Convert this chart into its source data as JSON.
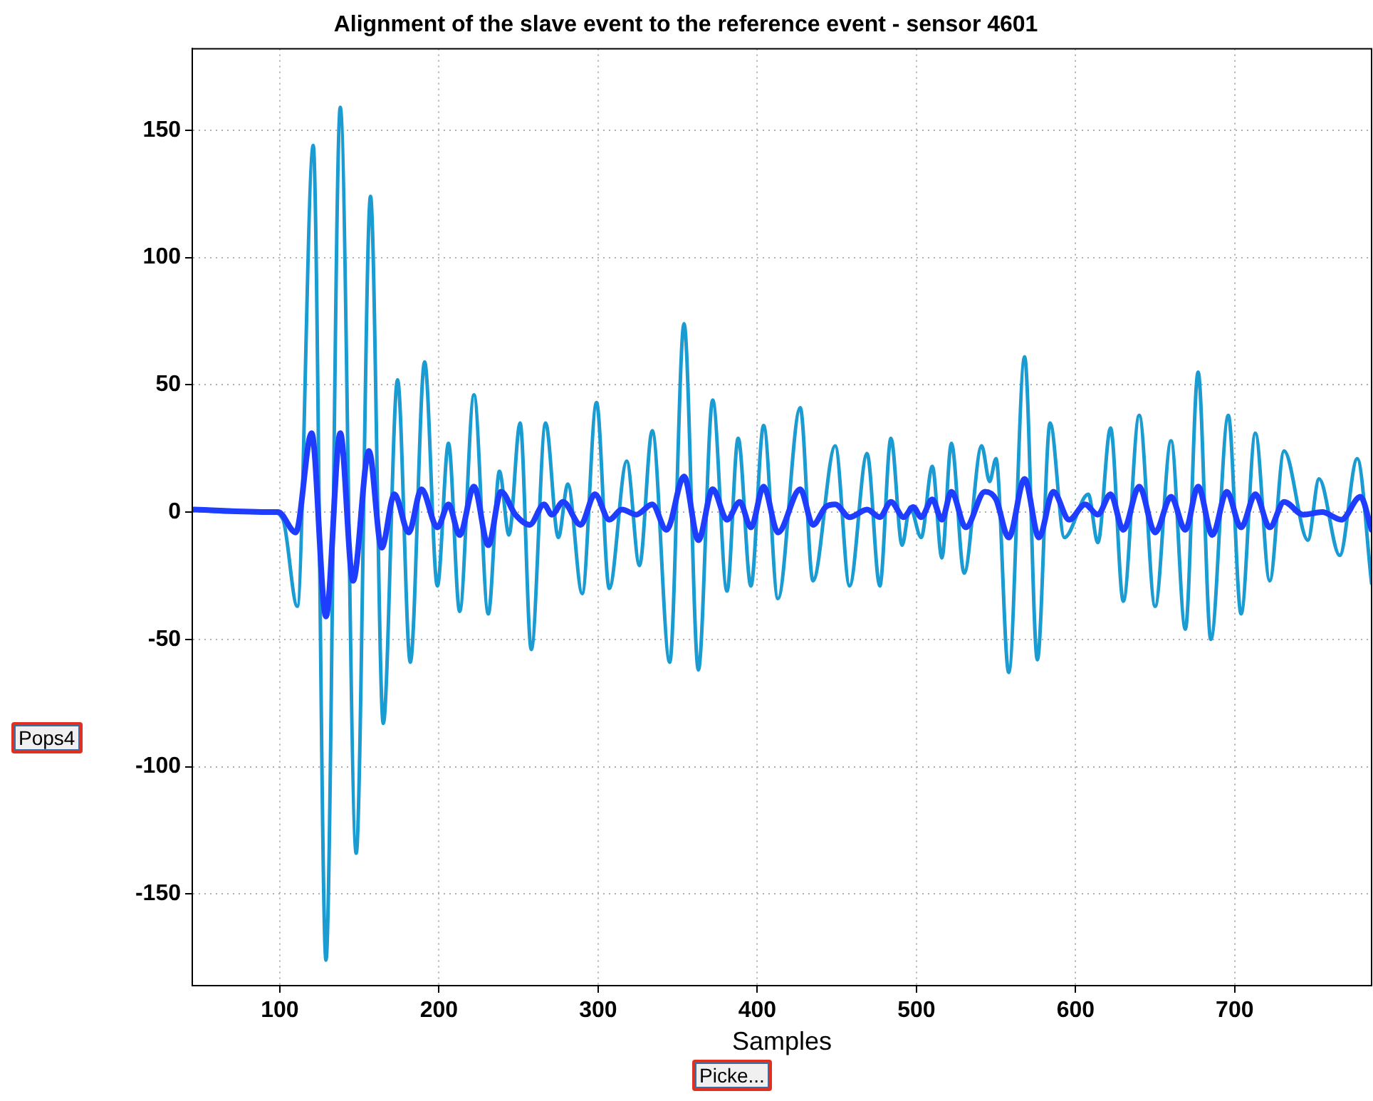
{
  "chart_data": {
    "type": "line",
    "title": "Alignment of the slave event to the reference event - sensor 4601",
    "xlabel": "Samples",
    "annotations": [
      "Pops4",
      "Picke..."
    ],
    "xlim": [
      45,
      786
    ],
    "xticks": [
      100,
      200,
      300,
      400,
      500,
      600,
      700
    ],
    "ylim": [
      -186,
      182
    ],
    "yticks": [
      -150,
      -100,
      -50,
      0,
      50,
      100,
      150
    ],
    "grid": true,
    "legend": false,
    "marker": "none",
    "line_style": "solid",
    "series": [
      {
        "color": "#1f3dff",
        "x": [
          46,
          95,
          99,
          110,
          120,
          129,
          138,
          146,
          156,
          164,
          172,
          181,
          189,
          199,
          206,
          213,
          222,
          231,
          239,
          248,
          257,
          266,
          271,
          278,
          289,
          298,
          307,
          315,
          324,
          334,
          343,
          354,
          363,
          372,
          381,
          389,
          396,
          404,
          413,
          427,
          435,
          443,
          449,
          458,
          469,
          477,
          484,
          492,
          498,
          503,
          510,
          516,
          522,
          531,
          543,
          550,
          558,
          568,
          577,
          586,
          596,
          606,
          614,
          622,
          630,
          640,
          650,
          660,
          669,
          677,
          686,
          695,
          704,
          713,
          722,
          731,
          743,
          755,
          767,
          779,
          786
        ],
        "values": [
          1,
          0,
          0,
          -8,
          31,
          -41,
          31,
          -27,
          24,
          -14,
          7,
          -8,
          9,
          -6,
          3,
          -9,
          10,
          -13,
          8,
          -1,
          -5,
          3,
          -1,
          4,
          -5,
          7,
          -3,
          1,
          -1,
          3,
          -7,
          14,
          -11,
          9,
          -3,
          4,
          -6,
          10,
          -8,
          9,
          -5,
          2,
          3,
          -2,
          1,
          -2,
          4,
          -2,
          2,
          -2,
          5,
          -3,
          8,
          -6,
          8,
          5,
          -10,
          13,
          -10,
          8,
          -3,
          3,
          -1,
          7,
          -7,
          10,
          -8,
          6,
          -7,
          10,
          -9,
          8,
          -6,
          7,
          -6,
          4,
          -1,
          0,
          -3,
          6,
          -7
        ]
      },
      {
        "color": "#1a9bd2",
        "x": [
          46,
          68,
          95,
          102,
          111,
          121,
          129,
          138,
          148,
          157,
          165,
          174,
          182,
          191,
          199,
          206,
          213,
          222,
          231,
          238,
          244,
          251,
          258,
          267,
          275,
          281,
          290,
          299,
          307,
          318,
          326,
          334,
          345,
          354,
          363,
          372,
          381,
          388,
          396,
          404,
          413,
          427,
          435,
          449,
          458,
          469,
          477,
          484,
          491,
          496,
          503,
          510,
          516,
          522,
          530,
          541,
          546,
          550,
          558,
          568,
          576,
          584,
          593,
          608,
          614,
          622,
          630,
          640,
          650,
          660,
          669,
          677,
          685,
          696,
          704,
          713,
          722,
          731,
          746,
          753,
          766,
          777,
          786
        ],
        "values": [
          1,
          0,
          0,
          -3,
          -37,
          144,
          -176,
          159,
          -134,
          124,
          -83,
          52,
          -59,
          59,
          -29,
          27,
          -39,
          46,
          -40,
          16,
          -9,
          35,
          -54,
          35,
          -10,
          11,
          -32,
          43,
          -30,
          20,
          -21,
          32,
          -59,
          74,
          -62,
          44,
          -31,
          29,
          -29,
          34,
          -34,
          41,
          -27,
          26,
          -29,
          23,
          -29,
          29,
          -13,
          2,
          -10,
          18,
          -18,
          27,
          -24,
          26,
          12,
          21,
          -63,
          61,
          -58,
          35,
          -10,
          7,
          -12,
          33,
          -35,
          38,
          -37,
          28,
          -46,
          55,
          -50,
          38,
          -40,
          31,
          -27,
          24,
          -11,
          13,
          -17,
          21,
          -28
        ]
      }
    ]
  }
}
